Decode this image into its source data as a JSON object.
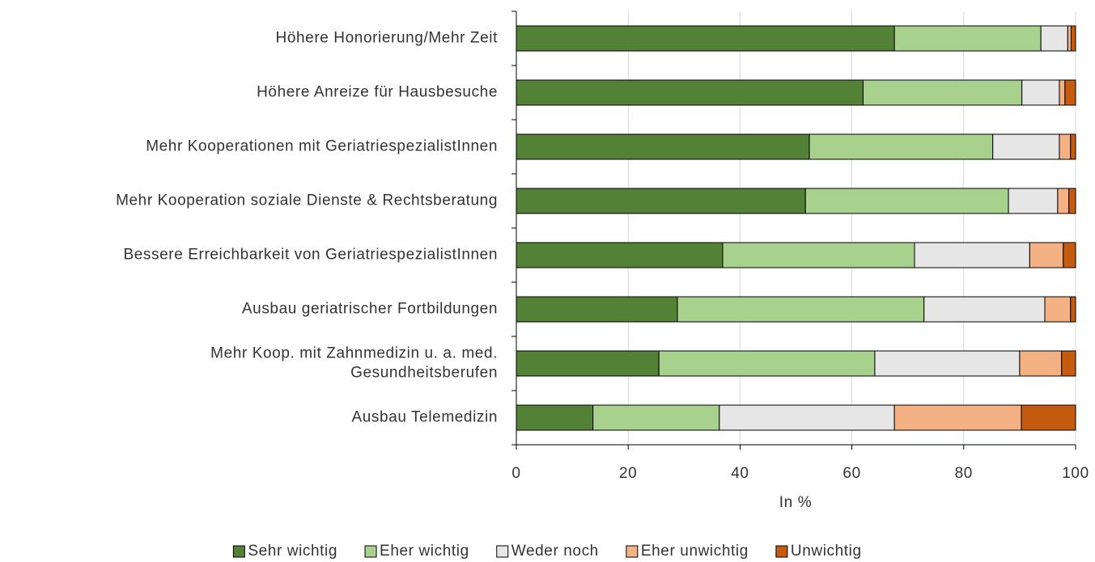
{
  "chart_data": {
    "type": "stacked-barh",
    "categories": [
      "Höhere Honorierung/Mehr Zeit",
      "Höhere Anreize für Hausbesuche",
      "Mehr Kooperationen mit GeriatriespezialistInnen",
      "Mehr Kooperation soziale Dienste & Rechtsberatung",
      "Bessere Erreichbarkeit von GeriatriespezialistInnen",
      "Ausbau geriatrischer Fortbildungen",
      "Mehr Koop. mit Zahnmedizin u. a. med.\nGesundheitsberufen",
      "Ausbau Telemedizin"
    ],
    "series": [
      {
        "name": "Sehr wichtig",
        "color": "#538135",
        "values": [
          67.6,
          62.0,
          52.4,
          51.7,
          36.9,
          28.8,
          25.5,
          13.7
        ]
      },
      {
        "name": "Eher wichtig",
        "color": "#a9d18e",
        "values": [
          26.2,
          28.4,
          32.8,
          36.3,
          34.3,
          44.1,
          38.6,
          22.6
        ]
      },
      {
        "name": "Weder noch",
        "color": "#e7e6e6",
        "values": [
          4.8,
          6.7,
          11.9,
          8.8,
          20.6,
          21.6,
          25.9,
          31.3
        ]
      },
      {
        "name": "Eher unwichtig",
        "color": "#f4b183",
        "values": [
          0.6,
          1.0,
          2.0,
          2.0,
          6.0,
          4.6,
          7.5,
          22.7
        ]
      },
      {
        "name": "Unwichtig",
        "color": "#c55a11",
        "values": [
          0.8,
          1.9,
          0.9,
          1.2,
          2.2,
          0.9,
          2.5,
          9.7
        ]
      }
    ],
    "xlabel": "In %",
    "xlim": [
      0,
      100
    ],
    "xticks": [
      0,
      20,
      40,
      60,
      80,
      100
    ],
    "grid": true,
    "legend": "bottom"
  }
}
